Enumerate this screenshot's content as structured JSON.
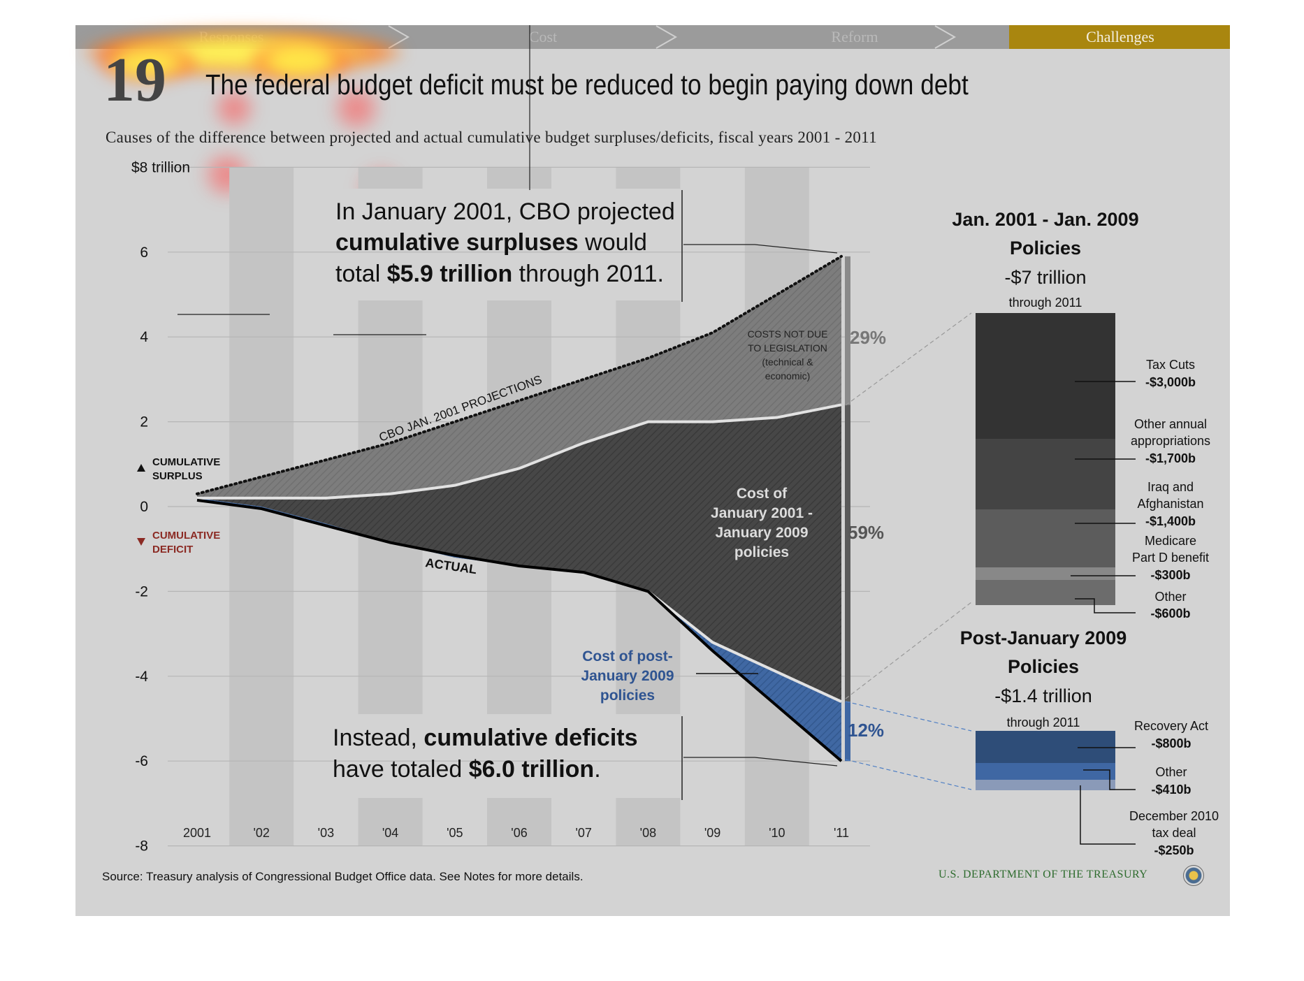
{
  "nav": {
    "tabs": [
      {
        "label": "Responses",
        "active": false
      },
      {
        "label": "Cost",
        "active": false
      },
      {
        "label": "Reform",
        "active": false
      },
      {
        "label": "Challenges",
        "active": true
      }
    ],
    "active_color": "#a9860f"
  },
  "header": {
    "number": "19",
    "title": "The federal budget deficit must be reduced to begin paying down debt",
    "subtitle": "Causes of the difference between projected and actual cumulative budget surpluses/deficits, fiscal years 2001 - 2011"
  },
  "legend": {
    "surplus": "CUMULATIVE SURPLUS",
    "surplus_line1": "CUMULATIVE",
    "surplus_line2": "SURPLUS",
    "deficit": "CUMULATIVE DEFICIT",
    "deficit_line1": "CUMULATIVE",
    "deficit_line2": "DEFICIT",
    "deficit_color": "#8b2a23"
  },
  "annotations": {
    "top_line1": "In January 2001, CBO projected",
    "top_bold1": "cumulative surpluses",
    "top_rest1": " would",
    "top_pre2": "total ",
    "top_bold2": "$5.9 trillion",
    "top_rest2": " through 2011.",
    "bottom_pre1": "Instead, ",
    "bottom_bold1": "cumulative deficits",
    "bottom_pre2": "have totaled ",
    "bottom_bold2": "$6.0 trillion",
    "bottom_rest2": ".",
    "cbo_label": "CBO JAN. 2001 PROJECTIONS",
    "actual_label": "ACTUAL",
    "costs_not_due": [
      "COSTS NOT DUE",
      "TO LEGISLATION",
      "(technical &",
      "economic)"
    ],
    "cost_0109": [
      "Cost of",
      "January 2001 -",
      "January 2009",
      "policies"
    ],
    "cost_post09": [
      "Cost of post-",
      "January 2009",
      "policies"
    ],
    "pct_top": "29%",
    "pct_mid": "59%",
    "pct_bottom": "12%"
  },
  "breakdown": {
    "first": {
      "title1": "Jan. 2001 - Jan. 2009",
      "title2": "Policies",
      "total": "-$7 trillion",
      "through": "through 2011",
      "items": [
        {
          "lines": [
            "Tax Cuts"
          ],
          "value": "-$3,000b",
          "color": "#333333"
        },
        {
          "lines": [
            "Other annual",
            "appropriations"
          ],
          "value": "-$1,700b",
          "color": "#444444"
        },
        {
          "lines": [
            "Iraq and",
            "Afghanistan"
          ],
          "value": "-$1,400b",
          "color": "#5c5c5c"
        },
        {
          "lines": [
            "Medicare",
            "Part D benefit"
          ],
          "value": "-$300b",
          "color": "#888888"
        },
        {
          "lines": [
            "Other"
          ],
          "value": "-$600b",
          "color": "#6c6c6c"
        }
      ]
    },
    "second": {
      "title1": "Post-January 2009",
      "title2": "Policies",
      "total": "-$1.4 trillion",
      "through": "through 2011",
      "items": [
        {
          "lines": [
            "Recovery Act"
          ],
          "value": "-$800b",
          "color": "#2e4d78"
        },
        {
          "lines": [
            "Other"
          ],
          "value": "-$410b",
          "color": "#3f67a3"
        },
        {
          "lines": [
            "December 2010",
            "tax deal"
          ],
          "value": "-$250b",
          "color": "#8a9ab8"
        }
      ]
    }
  },
  "footer": {
    "source": "Source: Treasury analysis of Congressional Budget Office data. See Notes for more details.",
    "agency": "U.S. DEPARTMENT OF THE TREASURY"
  },
  "colors": {
    "background": "#d3d3d3",
    "projection_area": "#7b7b7b",
    "policy_area": "#474747",
    "post2009_area": "#3f67a3"
  },
  "chart_data": {
    "type": "area",
    "title": "Causes of the difference between projected and actual cumulative budget surpluses/deficits, fiscal years 2001 - 2011",
    "x": [
      "2001",
      "'02",
      "'03",
      "'04",
      "'05",
      "'06",
      "'07",
      "'08",
      "'09",
      "'10",
      "'11"
    ],
    "ylim": [
      -8,
      8
    ],
    "y_ticks": [
      -8,
      -6,
      -4,
      -2,
      0,
      2,
      4,
      6,
      8
    ],
    "y_tick_labels": [
      "-8",
      "-6",
      "-4",
      "-2",
      "0",
      "2",
      "4",
      "6",
      "$8 trillion"
    ],
    "series": [
      {
        "name": "CBO JAN. 2001 PROJECTIONS",
        "values": [
          0.3,
          0.7,
          1.1,
          1.5,
          2.0,
          2.5,
          3.0,
          3.5,
          4.1,
          5.0,
          5.9
        ]
      },
      {
        "values": [
          0.2,
          0.2,
          0.2,
          0.3,
          0.5,
          0.9,
          1.5,
          2.0,
          2.0,
          2.1,
          2.4
        ]
      },
      {
        "values": [
          0.2,
          0.0,
          -0.4,
          -0.85,
          -1.2,
          -1.4,
          -1.55,
          -2.0,
          -3.2,
          -3.9,
          -4.6
        ]
      },
      {
        "name": "ACTUAL",
        "values": [
          0.15,
          -0.05,
          -0.45,
          -0.85,
          -1.15,
          -1.4,
          -1.55,
          -2.0,
          -3.4,
          -4.7,
          -6.0
        ]
      }
    ],
    "shares": [
      {
        "label": "COSTS NOT DUE TO LEGISLATION (technical & economic)",
        "value": 29
      },
      {
        "label": "Cost of January 2001 - January 2009 policies",
        "value": 59
      },
      {
        "label": "Cost of post-January 2009 policies",
        "value": 12
      }
    ],
    "grid": true,
    "legend": "left"
  }
}
